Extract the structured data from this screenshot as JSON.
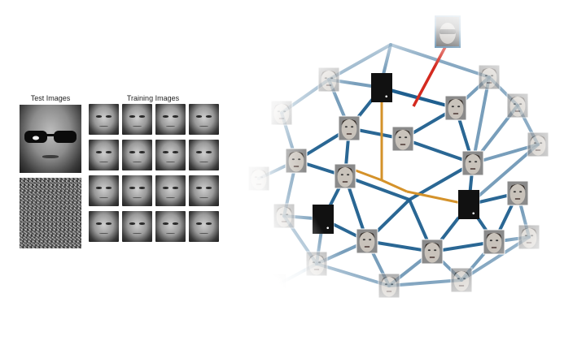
{
  "left_panel": {
    "test_title": "Test Images",
    "training_title": "Training Images"
  },
  "colors": {
    "edge_blue": "#1f5f8f",
    "edge_orange": "#d4922a",
    "edge_red": "#d42a1f",
    "occlusion_block": "#111111"
  },
  "network": {
    "nodes": [
      "face",
      "block",
      "face",
      "face",
      "face",
      "face",
      "block",
      "face",
      "face",
      "face",
      "block",
      "face",
      "face",
      "face",
      "face",
      "face",
      "face",
      "face",
      "face",
      "face",
      "face",
      "face",
      "face",
      "face",
      "face",
      "face",
      "face",
      "face"
    ],
    "query_node": "face-with-sunglasses",
    "red_link": "query-to-network",
    "orange_links": "block-to-block-paths"
  }
}
